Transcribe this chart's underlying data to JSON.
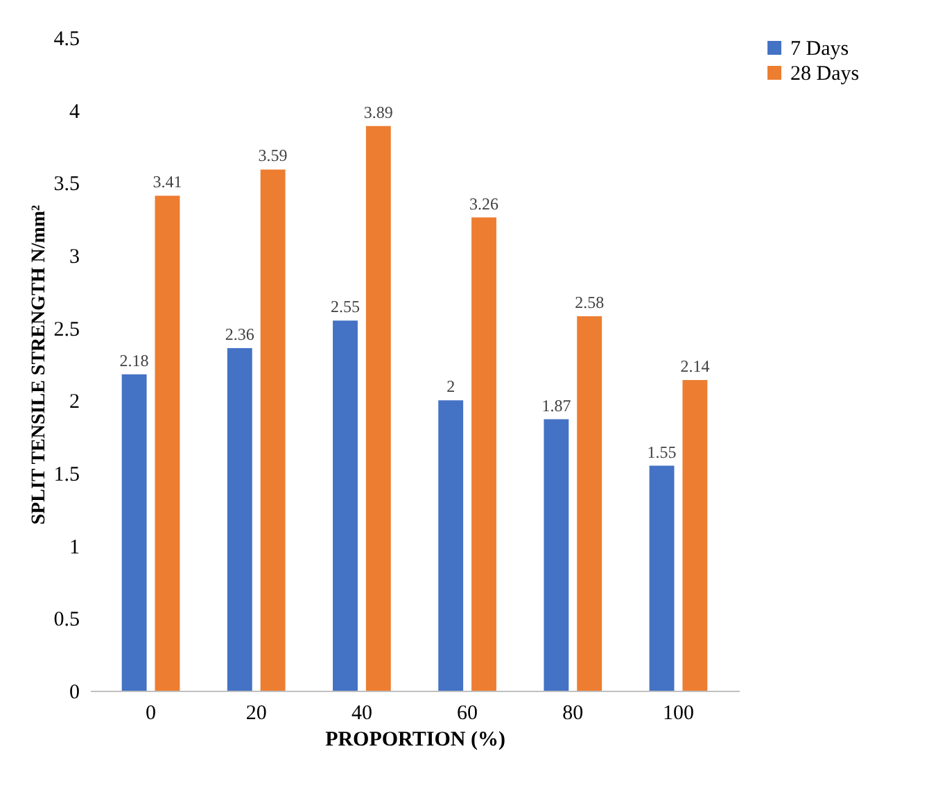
{
  "chart_data": {
    "type": "bar",
    "xlabel": "PROPORTION (%)",
    "ylabel": "SPLIT TENSILE STRENGTH N/mm²",
    "categories": [
      "0",
      "20",
      "40",
      "60",
      "80",
      "100"
    ],
    "series": [
      {
        "name": "7 Days",
        "color": "#4472c4",
        "values": [
          2.18,
          2.36,
          2.55,
          2,
          1.87,
          1.55
        ]
      },
      {
        "name": "28 Days",
        "color": "#ed7d31",
        "values": [
          3.41,
          3.59,
          3.89,
          3.26,
          2.58,
          2.14
        ]
      }
    ],
    "ylim": [
      0,
      4.5
    ],
    "yticks": [
      0,
      0.5,
      1,
      1.5,
      2,
      2.5,
      3,
      3.5,
      4,
      4.5
    ],
    "grid": false,
    "legend": "right",
    "data_labels": true
  }
}
